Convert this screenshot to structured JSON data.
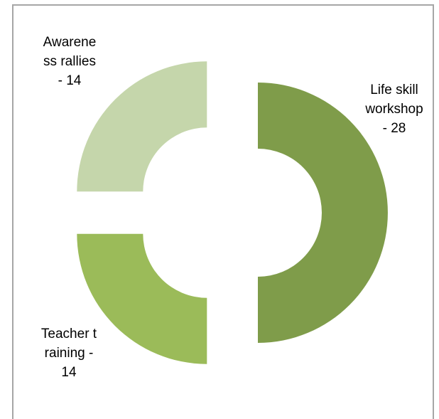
{
  "chart_data": {
    "type": "doughnut",
    "values": [
      28,
      14,
      14
    ],
    "value_labels": [
      "Life skill workshop - 28",
      "Teacher training - 14",
      "Awareness rallies - 14"
    ],
    "colors": [
      "#7f9c4a",
      "#9bbb59",
      "#c5d6ab"
    ]
  }
}
